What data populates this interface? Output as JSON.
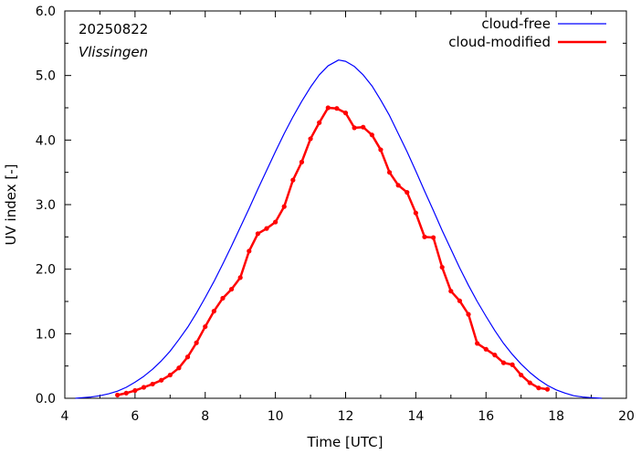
{
  "chart_data": {
    "type": "line",
    "annotations": {
      "date": "20250822",
      "location": "Vlissingen"
    },
    "xlabel": "Time  [UTC]",
    "ylabel": "UV index  [-]",
    "xlim": [
      4,
      20
    ],
    "ylim": [
      0,
      6
    ],
    "xticks": [
      "4",
      "6",
      "8",
      "10",
      "12",
      "14",
      "16",
      "18",
      "20"
    ],
    "yticks": [
      "0.0",
      "1.0",
      "2.0",
      "3.0",
      "4.0",
      "5.0",
      "6.0"
    ],
    "grid": false,
    "legend_position": "top-right",
    "series": [
      {
        "name": "cloud-free",
        "color": "#0000ff",
        "markers": false,
        "x": [
          4.3,
          4.5,
          4.75,
          5,
          5.25,
          5.5,
          5.75,
          6,
          6.25,
          6.5,
          6.75,
          7,
          7.25,
          7.5,
          7.75,
          8,
          8.25,
          8.5,
          8.75,
          9,
          9.25,
          9.5,
          9.75,
          10,
          10.25,
          10.5,
          10.75,
          11,
          11.25,
          11.5,
          11.8,
          12,
          12.25,
          12.5,
          12.75,
          13,
          13.25,
          13.5,
          13.75,
          14,
          14.25,
          14.5,
          14.75,
          15,
          15.25,
          15.5,
          15.75,
          16,
          16.25,
          16.5,
          16.75,
          17,
          17.25,
          17.5,
          17.75,
          18,
          18.25,
          18.5,
          18.75,
          19,
          19.3
        ],
        "y": [
          0.0,
          0.01,
          0.02,
          0.04,
          0.07,
          0.11,
          0.17,
          0.25,
          0.34,
          0.45,
          0.58,
          0.73,
          0.91,
          1.1,
          1.32,
          1.56,
          1.81,
          2.08,
          2.36,
          2.65,
          2.94,
          3.24,
          3.53,
          3.82,
          4.1,
          4.36,
          4.6,
          4.82,
          5.01,
          5.15,
          5.24,
          5.22,
          5.14,
          5.01,
          4.84,
          4.62,
          4.38,
          4.1,
          3.82,
          3.52,
          3.21,
          2.91,
          2.6,
          2.31,
          2.02,
          1.75,
          1.5,
          1.27,
          1.05,
          0.85,
          0.68,
          0.53,
          0.4,
          0.29,
          0.2,
          0.13,
          0.08,
          0.04,
          0.02,
          0.01,
          0.0
        ]
      },
      {
        "name": "cloud-modified",
        "color": "#ff0000",
        "markers": true,
        "x": [
          5.5,
          5.75,
          6,
          6.25,
          6.5,
          6.75,
          7,
          7.25,
          7.5,
          7.75,
          8,
          8.25,
          8.5,
          8.75,
          9,
          9.25,
          9.5,
          9.75,
          10,
          10.25,
          10.5,
          10.75,
          11,
          11.25,
          11.5,
          11.75,
          12,
          12.25,
          12.5,
          12.75,
          13,
          13.25,
          13.5,
          13.75,
          14,
          14.25,
          14.5,
          14.75,
          15,
          15.25,
          15.5,
          15.75,
          16,
          16.25,
          16.5,
          16.75,
          17,
          17.25,
          17.5,
          17.75
        ],
        "y": [
          0.05,
          0.08,
          0.12,
          0.17,
          0.22,
          0.28,
          0.36,
          0.47,
          0.64,
          0.86,
          1.11,
          1.35,
          1.55,
          1.69,
          1.87,
          2.28,
          2.55,
          2.63,
          2.73,
          2.97,
          3.38,
          3.66,
          4.02,
          4.27,
          4.5,
          4.49,
          4.42,
          4.19,
          4.2,
          4.08,
          3.85,
          3.5,
          3.3,
          3.19,
          2.87,
          2.5,
          2.49,
          2.03,
          1.66,
          1.51,
          1.3,
          0.85,
          0.76,
          0.67,
          0.55,
          0.52,
          0.36,
          0.24,
          0.16,
          0.14
        ]
      }
    ]
  }
}
